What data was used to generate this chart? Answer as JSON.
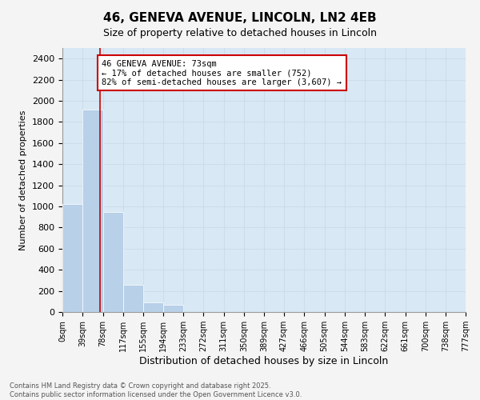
{
  "title_line1": "46, GENEVA AVENUE, LINCOLN, LN2 4EB",
  "title_line2": "Size of property relative to detached houses in Lincoln",
  "xlabel": "Distribution of detached houses by size in Lincoln",
  "ylabel": "Number of detached properties",
  "bar_edges": [
    0,
    39,
    78,
    117,
    155,
    194,
    233,
    272,
    311,
    350,
    389,
    427,
    466,
    505,
    544,
    583,
    622,
    661,
    700,
    738,
    777
  ],
  "bar_values": [
    1020,
    1920,
    950,
    260,
    90,
    65,
    0,
    0,
    0,
    0,
    0,
    0,
    0,
    0,
    0,
    0,
    0,
    0,
    0,
    0
  ],
  "bar_color": "#b8d0e8",
  "property_size": 73,
  "property_line_color": "#cc0000",
  "annotation_text": "46 GENEVA AVENUE: 73sqm\n← 17% of detached houses are smaller (752)\n82% of semi-detached houses are larger (3,607) →",
  "annotation_box_facecolor": "#ffffff",
  "annotation_box_edgecolor": "#cc0000",
  "ylim": [
    0,
    2500
  ],
  "ytick_max": 2400,
  "ytick_step": 200,
  "grid_color": "#c8d8e8",
  "plot_bg_color": "#d8e8f4",
  "figure_bg_color": "#f4f4f4",
  "tick_labels": [
    "0sqm",
    "39sqm",
    "78sqm",
    "117sqm",
    "155sqm",
    "194sqm",
    "233sqm",
    "272sqm",
    "311sqm",
    "350sqm",
    "389sqm",
    "427sqm",
    "466sqm",
    "505sqm",
    "544sqm",
    "583sqm",
    "622sqm",
    "661sqm",
    "700sqm",
    "738sqm",
    "777sqm"
  ],
  "footer_line1": "Contains HM Land Registry data © Crown copyright and database right 2025.",
  "footer_line2": "Contains public sector information licensed under the Open Government Licence v3.0.",
  "title1_fontsize": 11,
  "title2_fontsize": 9,
  "ylabel_fontsize": 8,
  "xlabel_fontsize": 9,
  "ytick_fontsize": 8,
  "xtick_fontsize": 7,
  "footer_fontsize": 6,
  "annot_fontsize": 7.5
}
